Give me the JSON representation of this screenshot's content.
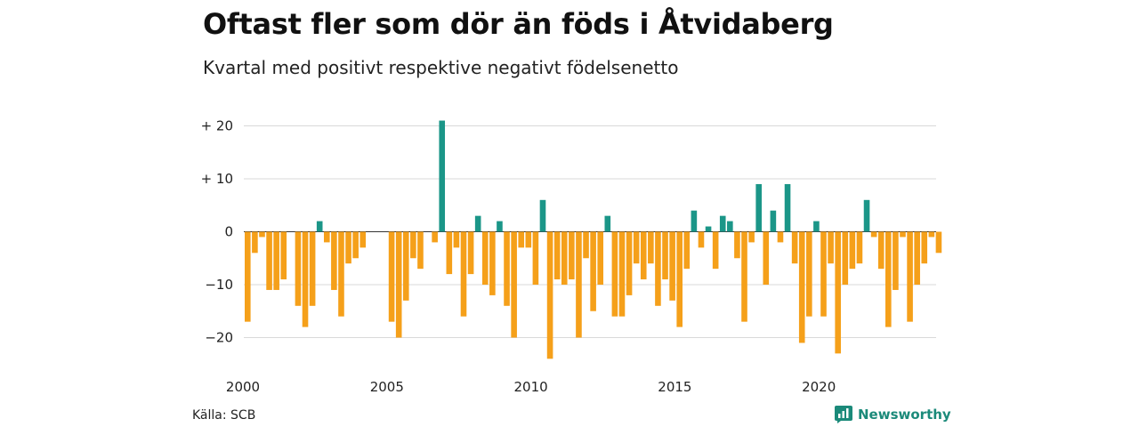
{
  "header": {
    "title": "Oftast fler som dör än föds i Åtvidaberg",
    "subtitle": "Kvartal med positivt respektive negativt födelsenetto"
  },
  "footer": {
    "source": "Källa: SCB",
    "brand": "Newsworthy"
  },
  "colors": {
    "positive": "#1b9688",
    "negative": "#f5a01a",
    "grid": "#d9d9d9",
    "brand": "#1b8a7a"
  },
  "chart_data": {
    "type": "bar",
    "title": "Oftast fler som dör än föds i Åtvidaberg",
    "subtitle": "Kvartal med positivt respektive negativt födelsenetto",
    "xlabel": "",
    "ylabel": "",
    "ylim": [
      -25,
      22
    ],
    "yticks": [
      20,
      10,
      0,
      -10,
      -20
    ],
    "ytick_labels": [
      "+ 20",
      "+ 10",
      "0",
      "−10",
      "−20"
    ],
    "xticks": [
      2000,
      2005,
      2010,
      2015,
      2020
    ],
    "x_start": 2000,
    "periods_per_year": 4,
    "grid": true,
    "series": [
      {
        "values": [
          -17,
          -4,
          -1,
          -11,
          -11,
          -9,
          0,
          -14,
          -18,
          -14,
          2,
          -2,
          -11,
          -16,
          -6,
          -5,
          -3,
          0,
          0,
          0,
          -17,
          -20,
          -13,
          -5,
          -7,
          0,
          -2,
          21,
          -8,
          -3,
          -16,
          -8,
          3,
          -10,
          -12,
          2,
          -14,
          -20,
          -3,
          -3,
          -10,
          6,
          -24,
          -9,
          -10,
          -9,
          -20,
          -5,
          -15,
          -10,
          3,
          -16,
          -16,
          -12,
          -6,
          -9,
          -6,
          -14,
          -9,
          -13,
          -18,
          -7,
          4,
          -3,
          1,
          -7,
          3,
          2,
          -5,
          -17,
          -2,
          9,
          -10,
          4,
          -2,
          9,
          -6,
          -21,
          -16,
          2,
          -16,
          -6,
          -23,
          -10,
          -7,
          -6,
          6,
          -1,
          -7,
          -18,
          -11,
          -1,
          -17,
          -10,
          -6,
          -1,
          -4
        ]
      }
    ]
  }
}
